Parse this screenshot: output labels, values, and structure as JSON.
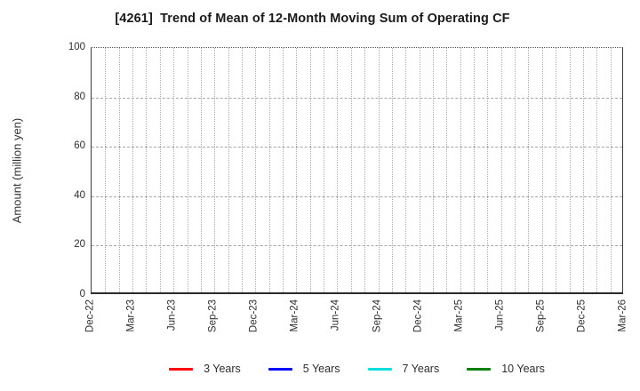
{
  "chart_data": {
    "type": "line",
    "title": "[4261]  Trend of Mean of 12-Month Moving Sum of Operating CF",
    "ylabel": "Amount (million yen)",
    "ylim": [
      0,
      100
    ],
    "yticks": [
      0,
      20,
      40,
      60,
      80,
      100
    ],
    "x_tick_labels": [
      "Dec-22",
      "Mar-23",
      "Jun-23",
      "Sep-23",
      "Dec-23",
      "Mar-24",
      "Jun-24",
      "Sep-24",
      "Dec-24",
      "Mar-25",
      "Jun-25",
      "Sep-25",
      "Dec-25",
      "Mar-26"
    ],
    "x_months_total": 39,
    "x_months_per_label": 3,
    "grid": true,
    "grid_style": "dotted monthly vertical lines, dashed horizontal lines every 20 units",
    "legend_position": "bottom",
    "plot_is_empty": true,
    "series": [
      {
        "name": "3 Years",
        "color": "#ff0000",
        "values": []
      },
      {
        "name": "5 Years",
        "color": "#0000ff",
        "values": []
      },
      {
        "name": "7 Years",
        "color": "#00dddd",
        "values": []
      },
      {
        "name": "10 Years",
        "color": "#008000",
        "values": []
      }
    ]
  }
}
